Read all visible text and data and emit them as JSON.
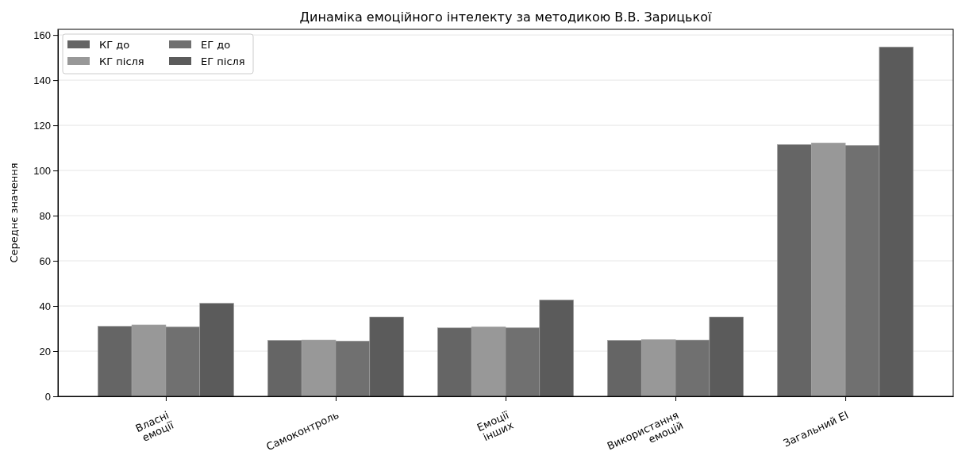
{
  "chart_data": {
    "type": "bar",
    "title": "Динаміка емоційного інтелекту за методикою В.В. Зарицької",
    "ylabel": "Середнє значення",
    "categories": [
      "Власні\nемоції",
      "Самоконтроль",
      "Емоції\nінших",
      "Використання\nемоцій",
      "Загальний ЕІ"
    ],
    "series": [
      {
        "name": "КГ до",
        "color": "#656565",
        "values": [
          31.0,
          24.8,
          30.3,
          24.8,
          111.5
        ]
      },
      {
        "name": "КГ після",
        "color": "#989898",
        "values": [
          31.6,
          24.9,
          30.8,
          25.1,
          112.2
        ]
      },
      {
        "name": "ЕГ до",
        "color": "#707070",
        "values": [
          30.8,
          24.5,
          30.4,
          24.9,
          111.1
        ]
      },
      {
        "name": "ЕГ після",
        "color": "#5b5b5b",
        "values": [
          41.2,
          35.1,
          42.7,
          35.1,
          154.7
        ]
      }
    ],
    "ylim": [
      0,
      162.5
    ],
    "yticks": [
      0,
      20,
      40,
      60,
      80,
      100,
      120,
      140,
      160
    ],
    "grid": "y",
    "legend": "top left"
  }
}
